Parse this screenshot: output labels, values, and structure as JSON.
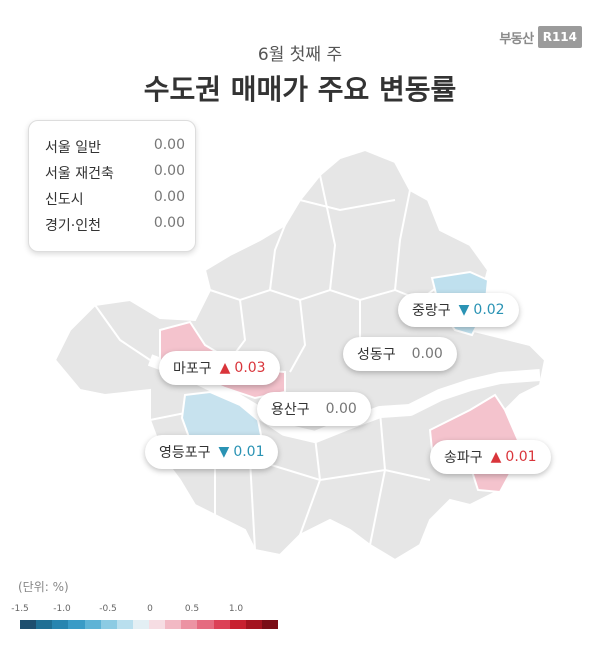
{
  "logo": {
    "text": "부동산",
    "mark": "R114"
  },
  "header": {
    "subtitle": "6월 첫째 주",
    "title": "수도권 매매가 주요 변동률"
  },
  "summary": [
    {
      "name": "서울 일반",
      "value": "0.00"
    },
    {
      "name": "서울 재건축",
      "value": "0.00"
    },
    {
      "name": "신도시",
      "value": "0.00"
    },
    {
      "name": "경기·인천",
      "value": "0.00"
    }
  ],
  "districts": {
    "jungnang": {
      "name": "중랑구",
      "arrow": "▼",
      "value": "0.02",
      "direction": "down"
    },
    "seongdong": {
      "name": "성동구",
      "value": "0.00",
      "direction": "flat"
    },
    "mapo": {
      "name": "마포구",
      "arrow": "▲",
      "value": "0.03",
      "direction": "up"
    },
    "yongsan": {
      "name": "용산구",
      "value": "0.00",
      "direction": "flat"
    },
    "yeongdeungpo": {
      "name": "영등포구",
      "arrow": "▼",
      "value": "0.01",
      "direction": "down"
    },
    "songpa": {
      "name": "송파구",
      "arrow": "▲",
      "value": "0.01",
      "direction": "up"
    }
  },
  "legend": {
    "unit": "(단위: %)",
    "ticks": [
      "-1.5",
      "-1.0",
      "-0.5",
      "0",
      "0.5",
      "1.0"
    ],
    "colors": [
      "#1d4e6e",
      "#1f6f94",
      "#2785b0",
      "#3a9bc6",
      "#5eb3d6",
      "#8ccbe3",
      "#b9dfee",
      "#e3eff4",
      "#f6dde3",
      "#f2b9c4",
      "#ec93a3",
      "#e56b80",
      "#dc4157",
      "#c8202f",
      "#a4131f",
      "#7a0d16"
    ],
    "up_color": "#d9353b",
    "down_color": "#2a93b4"
  }
}
